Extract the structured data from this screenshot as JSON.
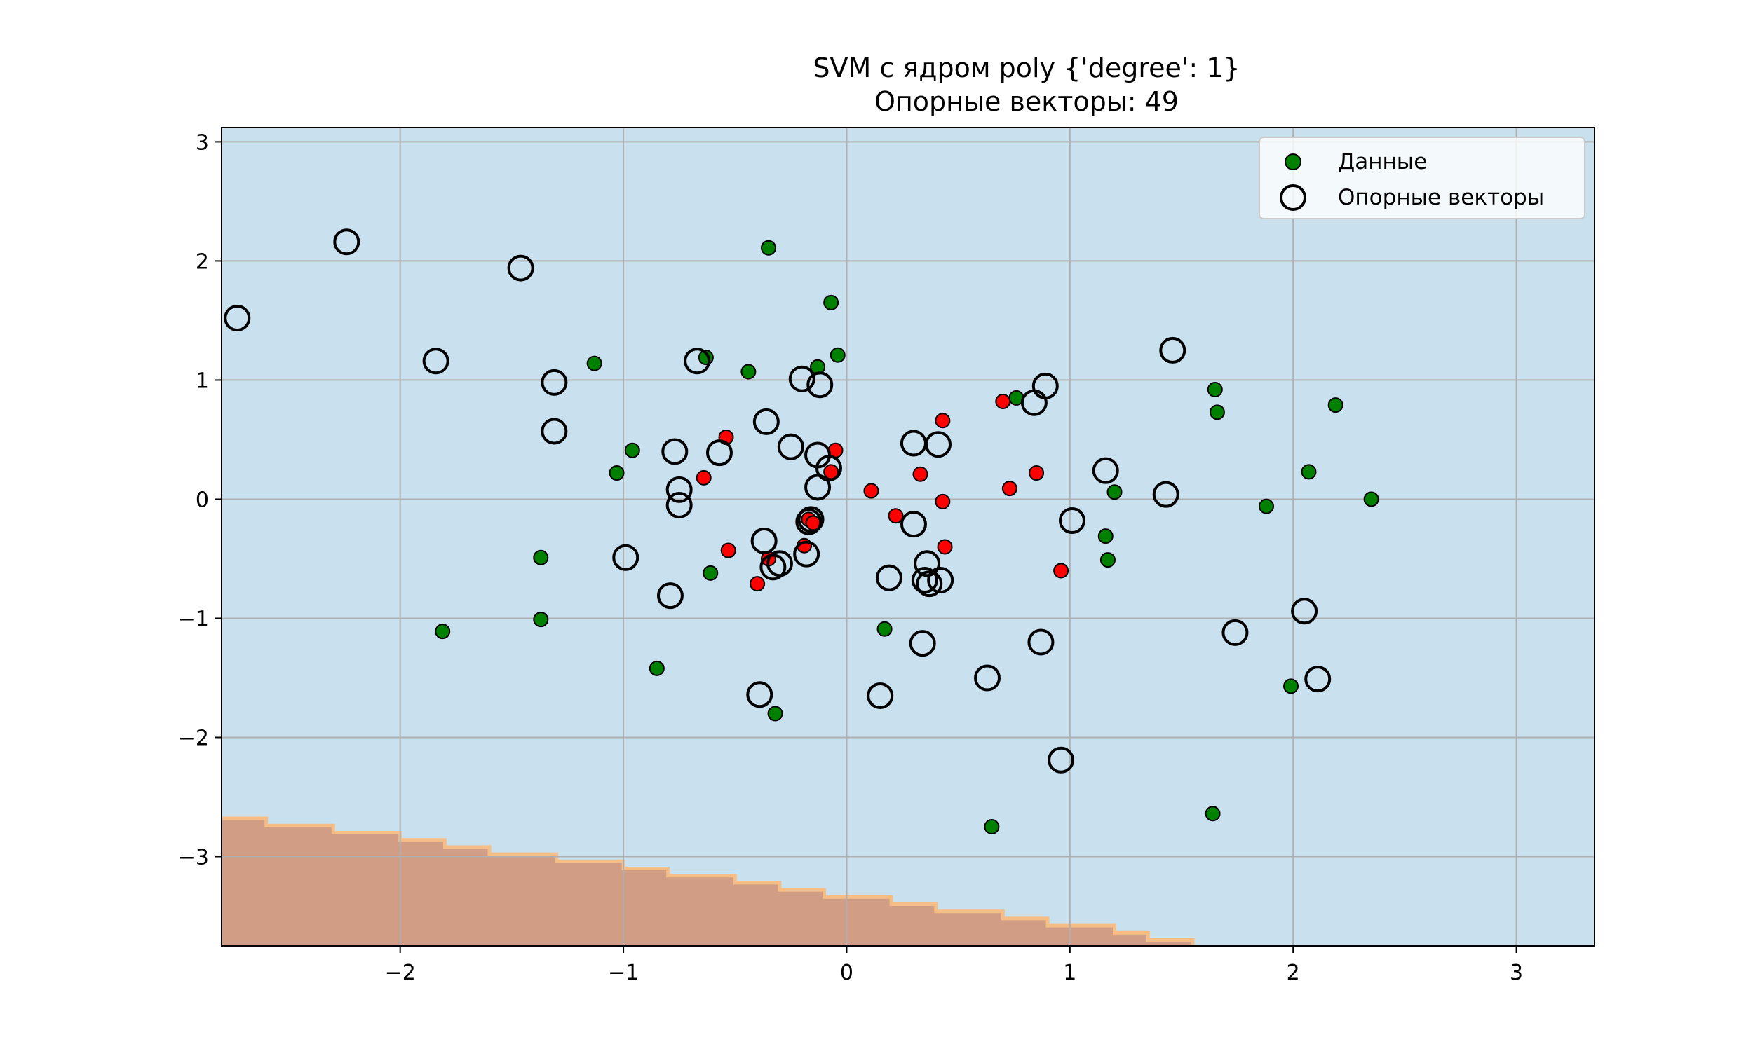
{
  "chart_data": {
    "type": "scatter",
    "title": "SVM с ядром poly {'degree': 1}",
    "subtitle": "Опорные векторы: 49",
    "xlim": [
      -2.8,
      3.35
    ],
    "ylim": [
      -3.75,
      3.12
    ],
    "x_ticks": [
      -2,
      -1,
      0,
      1,
      2,
      3
    ],
    "x_tick_labels": [
      "−2",
      "−1",
      "0",
      "1",
      "2",
      "3"
    ],
    "y_ticks": [
      -3,
      -2,
      -1,
      0,
      1,
      2,
      3
    ],
    "y_tick_labels": [
      "−3",
      "−2",
      "−1",
      "0",
      "1",
      "2",
      "3"
    ],
    "grid": true,
    "legend_position": "top-right",
    "colors": {
      "background_region": "#c9e0ee",
      "other_region": "#d19d85",
      "boundary_line": "#f5be86",
      "grid": "#b0b0b0",
      "class_green": "#008000",
      "class_red": "#ff0000",
      "support_vector_edge": "#000000"
    },
    "legend": [
      {
        "label": "Данные",
        "kind": "data"
      },
      {
        "label": "Опорные векторы",
        "kind": "support"
      }
    ],
    "decision_region_boundary": [
      [
        -2.8,
        -2.68
      ],
      [
        -2.6,
        -2.68
      ],
      [
        -2.6,
        -2.74
      ],
      [
        -2.3,
        -2.74
      ],
      [
        -2.3,
        -2.8
      ],
      [
        -2.0,
        -2.8
      ],
      [
        -2.0,
        -2.86
      ],
      [
        -1.8,
        -2.86
      ],
      [
        -1.8,
        -2.92
      ],
      [
        -1.6,
        -2.92
      ],
      [
        -1.6,
        -2.98
      ],
      [
        -1.3,
        -2.98
      ],
      [
        -1.3,
        -3.04
      ],
      [
        -1.0,
        -3.04
      ],
      [
        -1.0,
        -3.1
      ],
      [
        -0.8,
        -3.1
      ],
      [
        -0.8,
        -3.16
      ],
      [
        -0.5,
        -3.16
      ],
      [
        -0.5,
        -3.22
      ],
      [
        -0.3,
        -3.22
      ],
      [
        -0.3,
        -3.28
      ],
      [
        -0.1,
        -3.28
      ],
      [
        -0.1,
        -3.34
      ],
      [
        0.2,
        -3.34
      ],
      [
        0.2,
        -3.4
      ],
      [
        0.4,
        -3.4
      ],
      [
        0.4,
        -3.46
      ],
      [
        0.7,
        -3.46
      ],
      [
        0.7,
        -3.52
      ],
      [
        0.9,
        -3.52
      ],
      [
        0.9,
        -3.58
      ],
      [
        1.2,
        -3.58
      ],
      [
        1.2,
        -3.64
      ],
      [
        1.35,
        -3.64
      ],
      [
        1.35,
        -3.7
      ],
      [
        1.55,
        -3.7
      ],
      [
        1.55,
        -3.75
      ]
    ],
    "green_points": [
      [
        -0.35,
        2.11
      ],
      [
        -0.07,
        1.65
      ],
      [
        -0.63,
        1.19
      ],
      [
        -0.04,
        1.21
      ],
      [
        -0.13,
        1.11
      ],
      [
        -0.44,
        1.07
      ],
      [
        -1.13,
        1.14
      ],
      [
        -0.96,
        0.41
      ],
      [
        -1.03,
        0.22
      ],
      [
        -1.37,
        -0.49
      ],
      [
        -1.37,
        -1.01
      ],
      [
        -1.81,
        -1.11
      ],
      [
        -0.85,
        -1.42
      ],
      [
        -0.61,
        -0.62
      ],
      [
        -0.32,
        -1.8
      ],
      [
        0.17,
        -1.09
      ],
      [
        0.76,
        0.85
      ],
      [
        1.65,
        0.92
      ],
      [
        1.66,
        0.73
      ],
      [
        2.19,
        0.79
      ],
      [
        2.07,
        0.23
      ],
      [
        2.35,
        0.0
      ],
      [
        1.88,
        -0.06
      ],
      [
        1.2,
        0.06
      ],
      [
        1.16,
        -0.31
      ],
      [
        1.17,
        -0.51
      ],
      [
        1.99,
        -1.57
      ],
      [
        1.64,
        -2.64
      ],
      [
        0.65,
        -2.75
      ]
    ],
    "red_points": [
      [
        -0.54,
        0.52
      ],
      [
        -0.64,
        0.18
      ],
      [
        -0.05,
        0.41
      ],
      [
        -0.07,
        0.23
      ],
      [
        -0.17,
        -0.17
      ],
      [
        -0.15,
        -0.2
      ],
      [
        -0.19,
        -0.39
      ],
      [
        -0.53,
        -0.43
      ],
      [
        -0.35,
        -0.5
      ],
      [
        -0.4,
        -0.71
      ],
      [
        0.11,
        0.07
      ],
      [
        0.22,
        -0.14
      ],
      [
        0.33,
        0.21
      ],
      [
        0.43,
        0.66
      ],
      [
        0.43,
        -0.02
      ],
      [
        0.44,
        -0.4
      ],
      [
        0.7,
        0.82
      ],
      [
        0.73,
        0.09
      ],
      [
        0.85,
        0.22
      ],
      [
        0.96,
        -0.6
      ]
    ],
    "support_vectors": [
      [
        -2.73,
        1.52
      ],
      [
        -2.24,
        2.16
      ],
      [
        -1.84,
        1.16
      ],
      [
        -1.46,
        1.94
      ],
      [
        -1.31,
        0.98
      ],
      [
        -1.31,
        0.57
      ],
      [
        -0.67,
        1.16
      ],
      [
        -0.2,
        1.01
      ],
      [
        -0.12,
        0.96
      ],
      [
        -0.36,
        0.65
      ],
      [
        -0.25,
        0.44
      ],
      [
        -0.13,
        0.37
      ],
      [
        -0.77,
        0.4
      ],
      [
        -0.57,
        0.39
      ],
      [
        -0.08,
        0.26
      ],
      [
        -0.75,
        0.08
      ],
      [
        -0.75,
        -0.05
      ],
      [
        -0.13,
        0.1
      ],
      [
        -0.17,
        -0.19
      ],
      [
        -0.16,
        -0.17
      ],
      [
        -0.37,
        -0.35
      ],
      [
        -0.33,
        -0.57
      ],
      [
        -0.3,
        -0.54
      ],
      [
        -0.18,
        -0.46
      ],
      [
        -0.79,
        -0.81
      ],
      [
        -0.99,
        -0.49
      ],
      [
        -0.39,
        -1.64
      ],
      [
        0.15,
        -1.65
      ],
      [
        0.19,
        -0.66
      ],
      [
        0.34,
        -1.21
      ],
      [
        0.3,
        -0.21
      ],
      [
        0.3,
        0.47
      ],
      [
        0.41,
        0.46
      ],
      [
        0.36,
        -0.54
      ],
      [
        0.35,
        -0.68
      ],
      [
        0.37,
        -0.71
      ],
      [
        0.42,
        -0.68
      ],
      [
        0.63,
        -1.5
      ],
      [
        0.84,
        0.81
      ],
      [
        0.89,
        0.95
      ],
      [
        1.01,
        -0.18
      ],
      [
        0.87,
        -1.2
      ],
      [
        0.96,
        -2.19
      ],
      [
        1.16,
        0.24
      ],
      [
        1.43,
        0.04
      ],
      [
        1.46,
        1.25
      ],
      [
        1.74,
        -1.12
      ],
      [
        2.05,
        -0.94
      ],
      [
        2.11,
        -1.51
      ]
    ]
  }
}
